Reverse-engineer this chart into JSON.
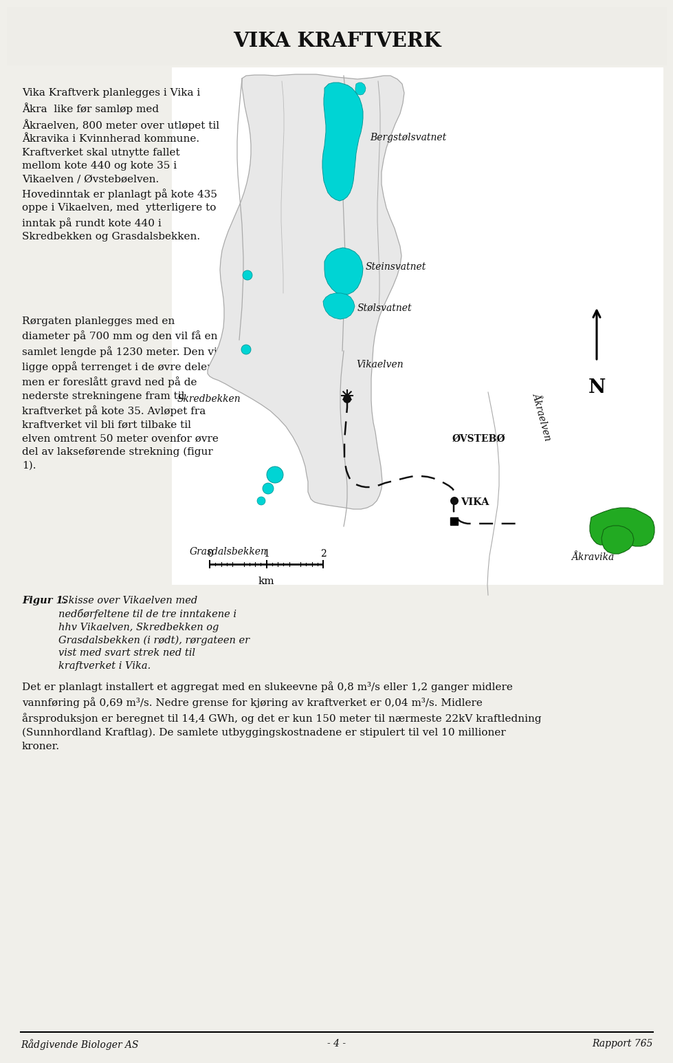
{
  "title": "VIKA KRAFTVERK",
  "bg_color": "#f0efea",
  "text1": "Vika Kraftverk planlegges i Vika i\nÅkra  like før samløp med\nÅkraelven, 800 meter over utløpet til\nÅkravika i Kvinnherad kommune.\nKraftverket skal utnytte fallet\nmellom kote 440 og kote 35 i\nVikaelven / Øvstebøelven.\nHovedinntak er planlagt på kote 435\noppe i Vikaelven, med  ytterligere to\ninntak på rundt kote 440 i\nSkredbekken og Grasdalsbekken.",
  "text2": "Rørgaten planlegges med en\ndiameter på 700 mm og den vil få en\nsamlet lengde på 1230 meter. Den vil\nligge oppå terrenget i de øvre deler,\nmen er foreslått gravd ned på de\nnederste strekningene fram til\nkraftverket på kote 35. Avløpet fra\nkraftverket vil bli ført tilbake til\nelven omtrent 50 meter ovenfor øvre\ndel av lakseførende strekning (figur\n1).",
  "caption_bold": "Figur 1.",
  "caption_rest": " Skisse over Vikaelven med\nnedбørfeltene til de tre inntakene i\nhhv Vikaelven, Skredbekken og\nGrasdalsbekken (i rødt), rørgateen er\nvist med svart strek ned til\nkraftverket i Vika.",
  "bottom_para": "Det er planlagt installert et aggregat med en slukeevne på 0,8 m³/s eller 1,2 ganger midlere\nvannføring på 0,69 m³/s. Nedre grense for kjøring av kraftverket er 0,04 m³/s. Midlere\nårsproduksjon er beregnet til 14,4 GWh, og det er kun 150 meter til nærmeste 22kV kraftledning\n(Sunnhordland Kraftlag). De samlete utbyggingskostnadene er stipulert til vel 10 millioner\nkroner.",
  "footer_left": "Rådgivende Biologer AS",
  "footer_center": "- 4 -",
  "footer_right": "Rapport 765",
  "label_bergstolsvatnet": "Bergstølsvatnet",
  "label_steinsvatnet": "Steinsvatnet",
  "label_stolsvatnet": "Stølsvatnet",
  "label_vikaelven": "Vikaelven",
  "label_skredbekken": "Skredbekken",
  "label_akraelven": "Åkraelven",
  "label_ovstebo": "ØVSTEBØ",
  "label_vika": "VIKA",
  "label_grasdalsbekken": "Grasdalsbekken",
  "label_akravika": "Åkravika",
  "label_N": "N",
  "scale_ticks": [
    "0",
    "1",
    "2"
  ],
  "scale_unit": "km",
  "water_color": "#00d4d4",
  "water_edge": "#009999",
  "catchment_color": "#cccccc",
  "catchment_edge": "#999999",
  "pipe_color": "#111111",
  "green_color": "#22aa22",
  "green_edge": "#116611"
}
